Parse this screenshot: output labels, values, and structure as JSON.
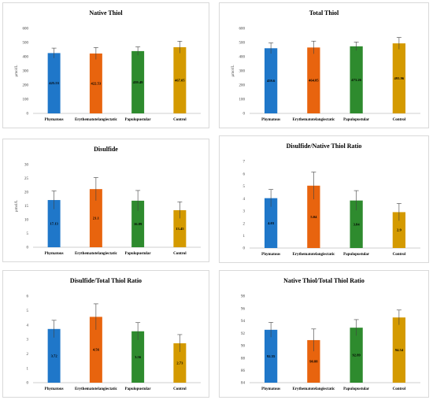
{
  "chart_data": [
    {
      "type": "bar",
      "title": "Native Thiol",
      "ylabel": "μmol/L",
      "categories": [
        "Phymatous",
        "Erythematotelangiectatic",
        "Papulopustular",
        "Control"
      ],
      "values": [
        425.53,
        422.53,
        439.49,
        467.05
      ],
      "value_labels": [
        "425.53",
        "422.53",
        "439.49",
        "467.05"
      ],
      "errors": [
        35,
        42,
        30,
        42
      ],
      "ylim": [
        0,
        600
      ],
      "yticks": [
        "0",
        "100",
        "200",
        "300",
        "400",
        "500",
        "600"
      ],
      "colors": [
        "#1f77c9",
        "#e8640e",
        "#2e8b2e",
        "#d49a00"
      ],
      "grid": false
    },
    {
      "type": "bar",
      "title": "Total Thiol",
      "ylabel": "μmol/L",
      "categories": [
        "Phymatous",
        "Erythematotelangiectatic",
        "Papulopustular",
        "Control"
      ],
      "values": [
        459.6,
        464.85,
        473.26,
        493.96
      ],
      "value_labels": [
        "459.6",
        "464.85",
        "473.26",
        "493.96"
      ],
      "errors": [
        38,
        45,
        30,
        42
      ],
      "ylim": [
        0,
        600
      ],
      "yticks": [
        "0",
        "100",
        "200",
        "300",
        "400",
        "500",
        "600"
      ],
      "colors": [
        "#1f77c9",
        "#e8640e",
        "#2e8b2e",
        "#d49a00"
      ],
      "grid": false
    },
    {
      "type": "bar",
      "title": "Disulfide",
      "ylabel": "μmol/L",
      "categories": [
        "Phymatous",
        "Erythematotelangiectatic",
        "Papulopustular",
        "Control"
      ],
      "values": [
        17.13,
        21.1,
        16.89,
        13.45
      ],
      "value_labels": [
        "17.13",
        "21.1",
        "16.89",
        "13.45"
      ],
      "errors": [
        3.3,
        4.2,
        3.7,
        3.0
      ],
      "ylim": [
        0,
        30
      ],
      "yticks": [
        "0",
        "5",
        "10",
        "15",
        "20",
        "25",
        "30"
      ],
      "colors": [
        "#1f77c9",
        "#e8640e",
        "#2e8b2e",
        "#d49a00"
      ],
      "grid": false
    },
    {
      "type": "bar",
      "title": "Disulfide/Native Thiol Ratio",
      "ylabel": "",
      "categories": [
        "Phymatous",
        "Erythematotelangiectatic",
        "Papulopustular",
        "Control"
      ],
      "values": [
        4.03,
        5.04,
        3.84,
        2.9
      ],
      "value_labels": [
        "4.03",
        "5.04",
        "3.84",
        "2.9"
      ],
      "errors": [
        0.7,
        1.1,
        0.8,
        0.7
      ],
      "ylim": [
        0,
        7
      ],
      "yticks": [
        "0",
        "1",
        "2",
        "3",
        "4",
        "5",
        "6",
        "7"
      ],
      "colors": [
        "#1f77c9",
        "#e8640e",
        "#2e8b2e",
        "#d49a00"
      ],
      "grid": false
    },
    {
      "type": "bar",
      "title": "Disulfide/Total Thiol Ratio",
      "ylabel": "",
      "categories": [
        "Phymatous",
        "Erythematotelangiectatic",
        "Papulopustular",
        "Control"
      ],
      "values": [
        3.72,
        4.56,
        3.56,
        2.73
      ],
      "value_labels": [
        "3.72",
        "4.56",
        "3.56",
        "2.73"
      ],
      "errors": [
        0.6,
        0.9,
        0.6,
        0.6
      ],
      "ylim": [
        0,
        6
      ],
      "yticks": [
        "0",
        "1",
        "2",
        "3",
        "4",
        "5",
        "6"
      ],
      "colors": [
        "#1f77c9",
        "#e8640e",
        "#2e8b2e",
        "#d49a00"
      ],
      "grid": false
    },
    {
      "type": "bar",
      "title": "Native Thiol/Total Thiol Ratio",
      "ylabel": "",
      "categories": [
        "Phymatous",
        "Erythematotelangiectatic",
        "Papulopustular",
        "Control"
      ],
      "values": [
        92.55,
        90.88,
        92.89,
        94.54
      ],
      "value_labels": [
        "92.55",
        "90.88",
        "92.89",
        "94.54"
      ],
      "errors": [
        1.2,
        1.8,
        1.3,
        1.2
      ],
      "ylim": [
        84,
        98
      ],
      "yticks": [
        "84",
        "86",
        "88",
        "90",
        "92",
        "94",
        "96",
        "98"
      ],
      "colors": [
        "#1f77c9",
        "#e8640e",
        "#2e8b2e",
        "#d49a00"
      ],
      "grid": false
    }
  ]
}
